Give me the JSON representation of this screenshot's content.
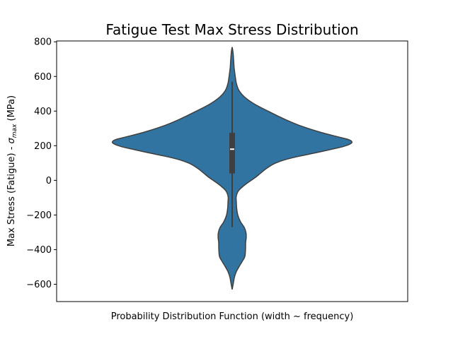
{
  "chart_data": {
    "type": "violin",
    "title": "Fatigue Test Max Stress Distribution",
    "xlabel": "Probability Distribution Function (width ~ frequency)",
    "ylabel": "Max Stress (Fatigue) - σmax (MPa)",
    "ylabel_parts": {
      "prefix": "Max Stress (Fatigue) - ",
      "symbol": "σ",
      "subscript": "max",
      "suffix": " (MPa)"
    },
    "ylim": [
      -700,
      805
    ],
    "yticks": [
      -600,
      -400,
      -200,
      0,
      200,
      400,
      600,
      800
    ],
    "ytick_labels": [
      "−600",
      "−400",
      "−200",
      "0",
      "200",
      "400",
      "600",
      "800"
    ],
    "grid": false,
    "legend": "none",
    "violin_color": "#3274a1",
    "edge_color": "#3f3f3f",
    "box_color": "#3f3f3f",
    "median_color": "#ffffff",
    "density_profile": {
      "y": [
        770,
        740,
        700,
        650,
        600,
        560,
        520,
        480,
        440,
        400,
        360,
        320,
        280,
        250,
        235,
        222,
        210,
        195,
        180,
        160,
        140,
        120,
        100,
        80,
        60,
        40,
        20,
        0,
        -20,
        -40,
        -60,
        -80,
        -100,
        -130,
        -160,
        -200,
        -240,
        -270,
        -300,
        -330,
        -360,
        -400,
        -440,
        -470,
        -500,
        -530,
        -560,
        -600,
        -630
      ],
      "half_width": [
        0.0,
        0.006,
        0.01,
        0.014,
        0.022,
        0.03,
        0.048,
        0.09,
        0.16,
        0.255,
        0.355,
        0.47,
        0.62,
        0.76,
        0.83,
        0.853,
        0.84,
        0.79,
        0.71,
        0.6,
        0.48,
        0.38,
        0.31,
        0.265,
        0.23,
        0.2,
        0.17,
        0.135,
        0.1,
        0.07,
        0.045,
        0.033,
        0.028,
        0.03,
        0.032,
        0.04,
        0.06,
        0.085,
        0.098,
        0.1,
        0.096,
        0.095,
        0.09,
        0.07,
        0.048,
        0.028,
        0.016,
        0.007,
        0.0
      ]
    },
    "box": {
      "q1": 40,
      "median": 180,
      "q3": 275,
      "whisker_low": -270,
      "whisker_high": 570
    }
  }
}
